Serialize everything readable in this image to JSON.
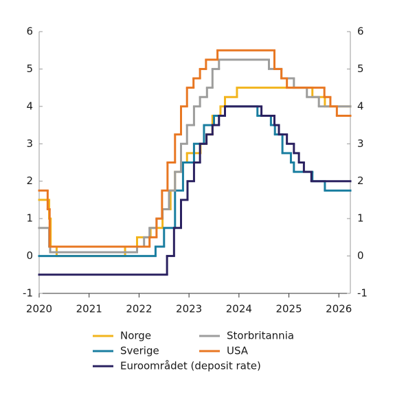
{
  "chart_data": {
    "type": "step-line",
    "xlim": [
      2020,
      2026.23
    ],
    "xticks": [
      2020,
      2021,
      2022,
      2023,
      2024,
      2025,
      2026
    ],
    "ylim": [
      -1,
      6
    ],
    "yticks": [
      -1,
      0,
      1,
      2,
      3,
      4,
      5,
      6
    ],
    "right_axis": true,
    "series": [
      {
        "name": "Norge",
        "color": "#f2b41c",
        "x": [
          2020,
          2020.2,
          2020.23,
          2020.35,
          2021.72,
          2021.96,
          2022.23,
          2022.47,
          2022.63,
          2022.72,
          2022.85,
          2022.96,
          2023.23,
          2023.35,
          2023.47,
          2023.63,
          2023.72,
          2023.96,
          2025.47,
          2025.72
        ],
        "values": [
          1.5,
          1.0,
          0.25,
          0,
          0.25,
          0.5,
          0.75,
          1.25,
          1.75,
          2.25,
          2.5,
          2.75,
          3.0,
          3.25,
          3.75,
          4.0,
          4.25,
          4.5,
          4.25,
          4.0
        ]
      },
      {
        "name": "Sverige",
        "color": "#1a7ea0",
        "x": [
          2020,
          2022.33,
          2022.5,
          2022.72,
          2022.88,
          2023.1,
          2023.3,
          2023.5,
          2023.72,
          2024.37,
          2024.64,
          2024.72,
          2024.87,
          2025.04,
          2025.1,
          2025.47,
          2025.72
        ],
        "values": [
          0,
          0.25,
          0.75,
          1.75,
          2.5,
          3.0,
          3.5,
          3.75,
          4.0,
          3.75,
          3.5,
          3.25,
          2.75,
          2.5,
          2.25,
          2.0,
          1.75
        ]
      },
      {
        "name": "Euroområdet (deposit rate)",
        "color": "#2a2160",
        "x": [
          2020,
          2022.56,
          2022.7,
          2022.84,
          2022.97,
          2023.1,
          2023.22,
          2023.35,
          2023.47,
          2023.6,
          2023.72,
          2024.45,
          2024.71,
          2024.8,
          2024.96,
          2025.1,
          2025.2,
          2025.3,
          2025.45
        ],
        "values": [
          -0.5,
          0,
          0.75,
          1.5,
          2.0,
          2.5,
          3.0,
          3.25,
          3.5,
          3.75,
          4.0,
          3.75,
          3.5,
          3.25,
          3.0,
          2.75,
          2.5,
          2.25,
          2.0
        ]
      },
      {
        "name": "Storbritannia",
        "color": "#9d9d9c",
        "x": [
          2020,
          2020.2,
          2020.22,
          2021.96,
          2022.1,
          2022.21,
          2022.35,
          2022.47,
          2022.6,
          2022.72,
          2022.84,
          2022.96,
          2023.1,
          2023.22,
          2023.36,
          2023.47,
          2023.6,
          2024.6,
          2024.85,
          2025.1,
          2025.36,
          2025.6
        ],
        "values": [
          0.75,
          0.25,
          0.1,
          0.25,
          0.5,
          0.75,
          1.0,
          1.25,
          1.75,
          2.25,
          3.0,
          3.5,
          4.0,
          4.25,
          4.5,
          5.0,
          5.25,
          5.0,
          4.75,
          4.5,
          4.25,
          4.0
        ]
      },
      {
        "name": "USA",
        "color": "#e87722",
        "x": [
          2020,
          2020.17,
          2020.21,
          2022.21,
          2022.35,
          2022.46,
          2022.57,
          2022.72,
          2022.84,
          2022.96,
          2023.09,
          2023.22,
          2023.34,
          2023.57,
          2024.71,
          2024.85,
          2024.96,
          2025.71,
          2025.83,
          2025.96
        ],
        "values": [
          1.75,
          1.25,
          0.25,
          0.5,
          1.0,
          1.75,
          2.5,
          3.25,
          4.0,
          4.5,
          4.75,
          5.0,
          5.25,
          5.5,
          5.0,
          4.75,
          4.5,
          4.25,
          4.0,
          3.75
        ]
      }
    ]
  }
}
